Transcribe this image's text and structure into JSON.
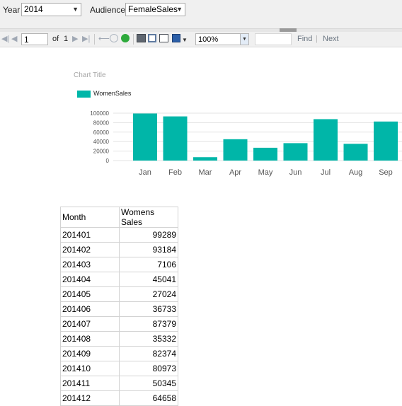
{
  "parameters": {
    "year": {
      "label": "Year",
      "value": "2014"
    },
    "audience": {
      "label": "Audience",
      "value": "FemaleSales"
    }
  },
  "toolbar": {
    "page_current": "1",
    "page_of_label": "of",
    "page_total": "1",
    "zoom_value": "100%",
    "find_label": "Find",
    "next_label": "Next",
    "find_separator": "|"
  },
  "chart_data": {
    "type": "bar",
    "title": "Chart Title",
    "legend": {
      "entries": [
        "WomenSales"
      ],
      "placement": "top-left"
    },
    "series": [
      {
        "name": "WomenSales",
        "color": "#00b6a8",
        "values": [
          99289,
          93184,
          7106,
          45041,
          27024,
          36733,
          87379,
          35332,
          82374
        ]
      }
    ],
    "categories": [
      "Jan",
      "Feb",
      "Mar",
      "Apr",
      "May",
      "Jun",
      "Jul",
      "Aug",
      "Sep"
    ],
    "y_ticks": [
      "0",
      "20000",
      "40000",
      "60000",
      "80000",
      "100000"
    ],
    "ylim": [
      0,
      100000
    ],
    "grid": true,
    "xlabel": "",
    "ylabel": ""
  },
  "table": {
    "headers": {
      "month": "Month",
      "sales": "Womens Sales"
    },
    "rows": [
      {
        "month": "201401",
        "sales": "99289"
      },
      {
        "month": "201402",
        "sales": "93184"
      },
      {
        "month": "201403",
        "sales": "7106"
      },
      {
        "month": "201404",
        "sales": "45041"
      },
      {
        "month": "201405",
        "sales": "27024"
      },
      {
        "month": "201406",
        "sales": "36733"
      },
      {
        "month": "201407",
        "sales": "87379"
      },
      {
        "month": "201408",
        "sales": "35332"
      },
      {
        "month": "201409",
        "sales": "82374"
      },
      {
        "month": "201410",
        "sales": "80973"
      },
      {
        "month": "201411",
        "sales": "50345"
      },
      {
        "month": "201412",
        "sales": "64658"
      }
    ]
  }
}
